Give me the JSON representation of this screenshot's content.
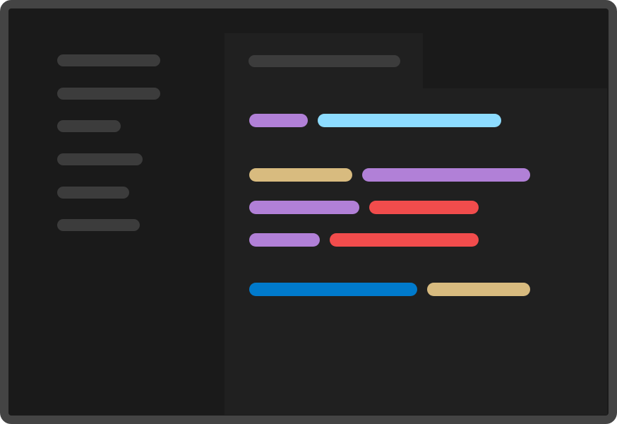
{
  "window": {
    "frame_color": "#444444",
    "background_color": "#1a1a1a"
  },
  "sidebar": {
    "items": [
      {
        "placeholder_color": "#3c3c3c"
      },
      {
        "placeholder_color": "#3c3c3c"
      },
      {
        "placeholder_color": "#3c3c3c"
      },
      {
        "placeholder_color": "#3c3c3c"
      },
      {
        "placeholder_color": "#3c3c3c"
      },
      {
        "placeholder_color": "#3c3c3c"
      }
    ]
  },
  "editor": {
    "background_color": "#202020",
    "active_tab": {
      "placeholder_color": "#3c3c3c"
    },
    "token_colors": {
      "keyword": "#b180d7",
      "variable": "#8ddcff",
      "type": "#d8bb7f",
      "string": "#f14c4c",
      "function": "#007acc"
    },
    "lines": [
      [
        "keyword",
        "variable"
      ],
      [
        "type",
        "keyword"
      ],
      [
        "keyword",
        "string"
      ],
      [
        "keyword",
        "string"
      ],
      [
        "function",
        "type"
      ]
    ]
  }
}
